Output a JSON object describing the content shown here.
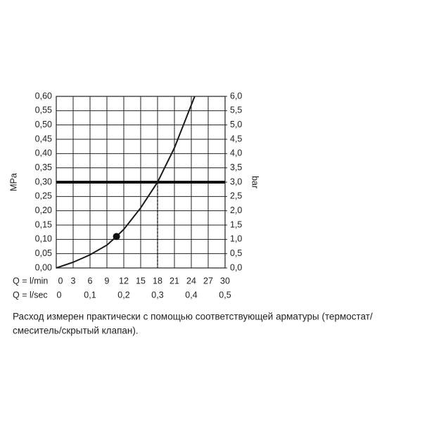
{
  "chart_data": {
    "type": "line",
    "ylabel": "MPa",
    "y2label": "bar",
    "xlabel": "Q = l/min",
    "x2label": "Q = l/sec",
    "x": [
      0,
      3,
      6,
      9,
      10.7,
      12,
      15,
      18,
      21,
      24.6
    ],
    "values": [
      0,
      0.02,
      0.046,
      0.08,
      0.11,
      0.135,
      0.21,
      0.3,
      0.42,
      0.6
    ],
    "color": "#1a1a1a",
    "xlim": [
      0,
      30
    ],
    "xticks": [
      0,
      3,
      6,
      9,
      12,
      15,
      18,
      21,
      24,
      27,
      30
    ],
    "x2lim": [
      0,
      0.5
    ],
    "x2ticks": [
      0,
      {
        "value": 0.1,
        "label": "0,1"
      },
      {
        "value": 0.2,
        "label": "0,2"
      },
      {
        "value": 0.3,
        "label": "0,3"
      },
      {
        "value": 0.4,
        "label": "0,4"
      },
      {
        "value": 0.5,
        "label": "0,5"
      }
    ],
    "ylim": [
      0,
      0.6
    ],
    "yticks": [
      {
        "value": 0,
        "label": "0,00"
      },
      {
        "value": 0.05,
        "label": "0,05"
      },
      {
        "value": 0.1,
        "label": "0,10"
      },
      {
        "value": 0.15,
        "label": "0,15"
      },
      {
        "value": 0.2,
        "label": "0,20"
      },
      {
        "value": 0.25,
        "label": "0,25"
      },
      {
        "value": 0.3,
        "label": "0,30"
      },
      {
        "value": 0.35,
        "label": "0,35"
      },
      {
        "value": 0.4,
        "label": "0,40"
      },
      {
        "value": 0.45,
        "label": "0,45"
      },
      {
        "value": 0.5,
        "label": "0,50"
      },
      {
        "value": 0.55,
        "label": "0,55"
      },
      {
        "value": 0.6,
        "label": "0,60"
      }
    ],
    "y2lim": [
      0,
      6
    ],
    "y2ticks": [
      {
        "value": 0,
        "label": "0,0"
      },
      {
        "value": 0.5,
        "label": "0,5"
      },
      {
        "value": 1,
        "label": "1,0"
      },
      {
        "value": 1.5,
        "label": "1,5"
      },
      {
        "value": 2,
        "label": "2,0"
      },
      {
        "value": 2.5,
        "label": "2,5"
      },
      {
        "value": 3,
        "label": "3,0"
      },
      {
        "value": 3.5,
        "label": "3,5"
      },
      {
        "value": 4,
        "label": "4,0"
      },
      {
        "value": 4.5,
        "label": "4,5"
      },
      {
        "value": 5,
        "label": "5,0"
      },
      {
        "value": 5.5,
        "label": "5,5"
      },
      {
        "value": 6,
        "label": "6,0"
      }
    ],
    "grid": true,
    "hline": 0.3,
    "vline": 18,
    "point": {
      "x": 10.7,
      "y": 0.11
    },
    "caption": [
      "Расход измерен практически с помощью соответствующей арматуры (термостат/",
      "смеситель/скрытый клапан)."
    ]
  }
}
